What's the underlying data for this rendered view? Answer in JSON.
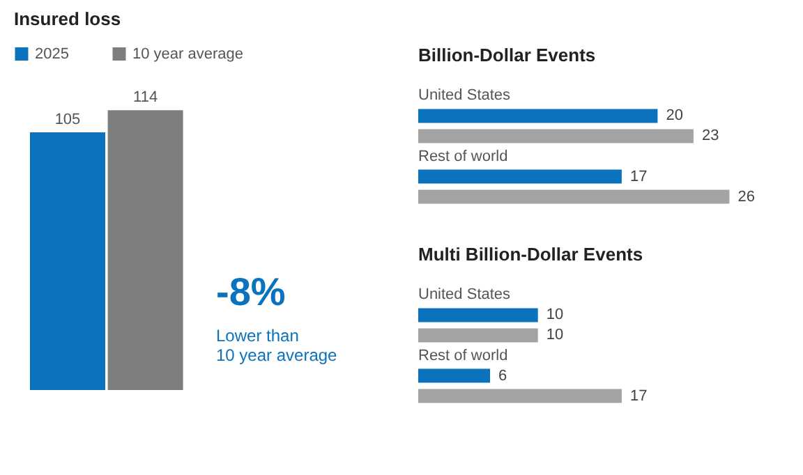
{
  "chart_data": [
    {
      "type": "bar",
      "title": "Insured loss",
      "categories": [
        null
      ],
      "series": [
        {
          "name": "2025",
          "color": "#0b72bd",
          "values": [
            105
          ]
        },
        {
          "name": "10 year average",
          "color": "#7d7f7e",
          "values": [
            114
          ]
        }
      ],
      "data_labels": true,
      "legend": "top",
      "annotations": [
        "-8%",
        "Lower than",
        "10 year average"
      ]
    },
    {
      "type": "bar",
      "orientation": "horizontal",
      "title": "Billion-Dollar Events",
      "categories": [
        "United States",
        "Rest of world"
      ],
      "series": [
        {
          "color": "#0b72bd",
          "values": [
            20,
            17
          ]
        },
        {
          "color": "#a3a3a3",
          "values": [
            23,
            26
          ]
        }
      ],
      "data_labels": true
    },
    {
      "type": "bar",
      "orientation": "horizontal",
      "title": "Multi Billion-Dollar Events",
      "categories": [
        "United States",
        "Rest of world"
      ],
      "series": [
        {
          "color": "#0b72bd",
          "values": [
            10,
            6
          ]
        },
        {
          "color": "#a3a3a3",
          "values": [
            10,
            17
          ]
        }
      ],
      "data_labels": true
    }
  ]
}
